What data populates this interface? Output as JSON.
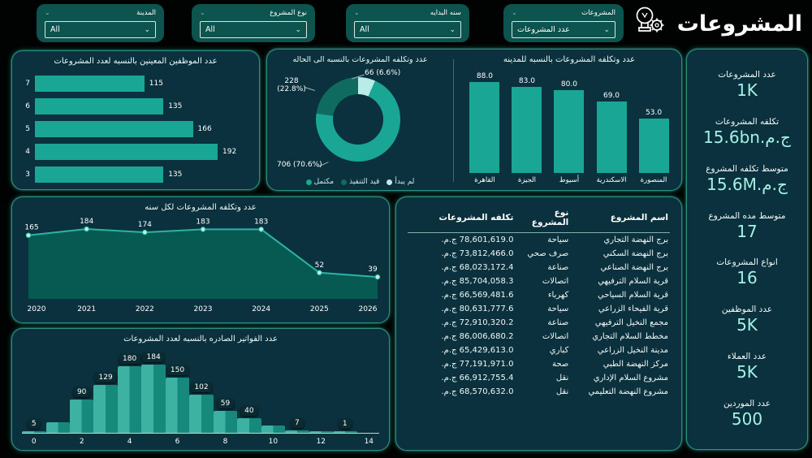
{
  "app": {
    "title": "المشروعات"
  },
  "filters": [
    {
      "label": "المدينة",
      "value": "All"
    },
    {
      "label": "نوع المشروع",
      "value": "All"
    },
    {
      "label": "سنه البدايه",
      "value": "All"
    },
    {
      "label": "المشروعات",
      "value": "عدد المشروعات"
    }
  ],
  "kpis": [
    {
      "label": "عدد المشروعات",
      "value": "1K"
    },
    {
      "label": "تكلفه المشروعات",
      "value": "15.6bn.ج.م"
    },
    {
      "label": "متوسط تكلفه المشروع",
      "value": "15.6M.ج.م"
    },
    {
      "label": "متوسط مده المشروع",
      "value": "17"
    },
    {
      "label": "انواع المشروعات",
      "value": "16"
    },
    {
      "label": "عدد الموظفين",
      "value": "5K"
    },
    {
      "label": "عدد العملاء",
      "value": "5K"
    },
    {
      "label": "عدد الموردين",
      "value": "500"
    }
  ],
  "table": {
    "headers": [
      "اسم المشروع",
      "نوع المشروع",
      "تكلفه المشروعات"
    ],
    "rows": [
      [
        "برج النهضة التجاري",
        "سياحة",
        "78,601,619.0 ج.م."
      ],
      [
        "برج النهضة السكني",
        "صرف صحي",
        "73,812,466.0 ج.م."
      ],
      [
        "برج النهضة الصناعي",
        "صناعة",
        "68,023,172.4 ج.م."
      ],
      [
        "قرية السلام الترفيهي",
        "اتصالات",
        "85,704,058.3 ج.م."
      ],
      [
        "قرية السلام السياحي",
        "كهرباء",
        "66,569,481.6 ج.م."
      ],
      [
        "قرية الفيحاء الزراعي",
        "سياحة",
        "80,631,777.6 ج.م."
      ],
      [
        "مجمع النخيل الترفيهي",
        "صناعة",
        "72,910,320.2 ج.م."
      ],
      [
        "مخطط السلام التجاري",
        "اتصالات",
        "86,006,680.2 ج.م."
      ],
      [
        "مدينة النخيل الزراعي",
        "كباري",
        "65,429,613.0 ج.م."
      ],
      [
        "مركز النهضة الطبي",
        "صحة",
        "77,191,971.0 ج.م."
      ],
      [
        "مشروع السلام الإداري",
        "نقل",
        "66,912,755.4 ج.م."
      ],
      [
        "مشروع النهضة التعليمي",
        "نقل",
        "68,570,632.0 ج.م."
      ]
    ]
  },
  "chart_data": [
    {
      "id": "employees-per-project-count",
      "type": "bar",
      "orientation": "horizontal",
      "title": "عدد الموظفين المعينين بالنسبه لعدد المشروعات",
      "categories": [
        "7",
        "6",
        "5",
        "4",
        "3"
      ],
      "values": [
        115,
        135,
        166,
        192,
        135
      ],
      "xlim": [
        0,
        200
      ]
    },
    {
      "id": "projects-by-status",
      "type": "pie",
      "title": "عدد وتكلفه المشروعات بالنسبه الى الحاله",
      "labels": [
        "لم يبدأ",
        "قيد التنفيذ",
        "مكتمل"
      ],
      "values": [
        66,
        228,
        706
      ],
      "percents": [
        6.6,
        22.8,
        70.6
      ],
      "colors": [
        "#b9ece6",
        "#0f6b60",
        "#19a695"
      ],
      "legend_position": "bottom"
    },
    {
      "id": "projects-by-city",
      "type": "bar",
      "orientation": "vertical",
      "title": "عدد وتكلفه المشروعات بالنسبه للمدينه",
      "categories": [
        "القاهرة",
        "الجيزة",
        "أسيوط",
        "الاسكندرية",
        "المنصورة"
      ],
      "values": [
        88.0,
        83.0,
        80.0,
        69.0,
        53.0
      ],
      "value_labels": [
        "88.0",
        "83.0",
        "80.0",
        "69.0",
        "53.0"
      ],
      "ylim": [
        0,
        88
      ]
    },
    {
      "id": "projects-per-year",
      "type": "area",
      "title": "عدد وتكلفه المشروعات لكل سنه",
      "x": [
        "2020",
        "2021",
        "2022",
        "2023",
        "2024",
        "2025",
        "2026"
      ],
      "values": [
        165,
        184,
        174,
        183,
        183,
        52,
        39
      ],
      "ylim": [
        0,
        200
      ]
    },
    {
      "id": "invoices-per-project-count",
      "type": "bar",
      "title": "عدد الفواتير الصادره بالنسبه لعدد المشروعات",
      "x": [
        0,
        1,
        2,
        3,
        4,
        5,
        6,
        7,
        8,
        9,
        10,
        11,
        12,
        13
      ],
      "values": [
        5,
        28,
        90,
        129,
        180,
        184,
        150,
        102,
        59,
        40,
        20,
        7,
        2,
        1
      ],
      "shown_labels": [
        "5",
        null,
        "90",
        "129",
        "180",
        "184",
        "150",
        "102",
        "59",
        "40",
        null,
        "7",
        null,
        "1"
      ],
      "xticks": [
        0,
        2,
        4,
        6,
        8,
        10,
        12,
        14
      ],
      "ylim": [
        0,
        200
      ]
    }
  ],
  "colors": {
    "accent": "#19a695",
    "accent_dark": "#0f6b60",
    "accent_light": "#b9ece6",
    "card_bg": "#0a313d",
    "kpi_value": "#a5f1e6",
    "area_fill": "#065a52",
    "area_line": "#2ab5a3",
    "hist_light": "#3db2a2",
    "hist_dark": "#17897c",
    "page_bg": "#000302"
  }
}
